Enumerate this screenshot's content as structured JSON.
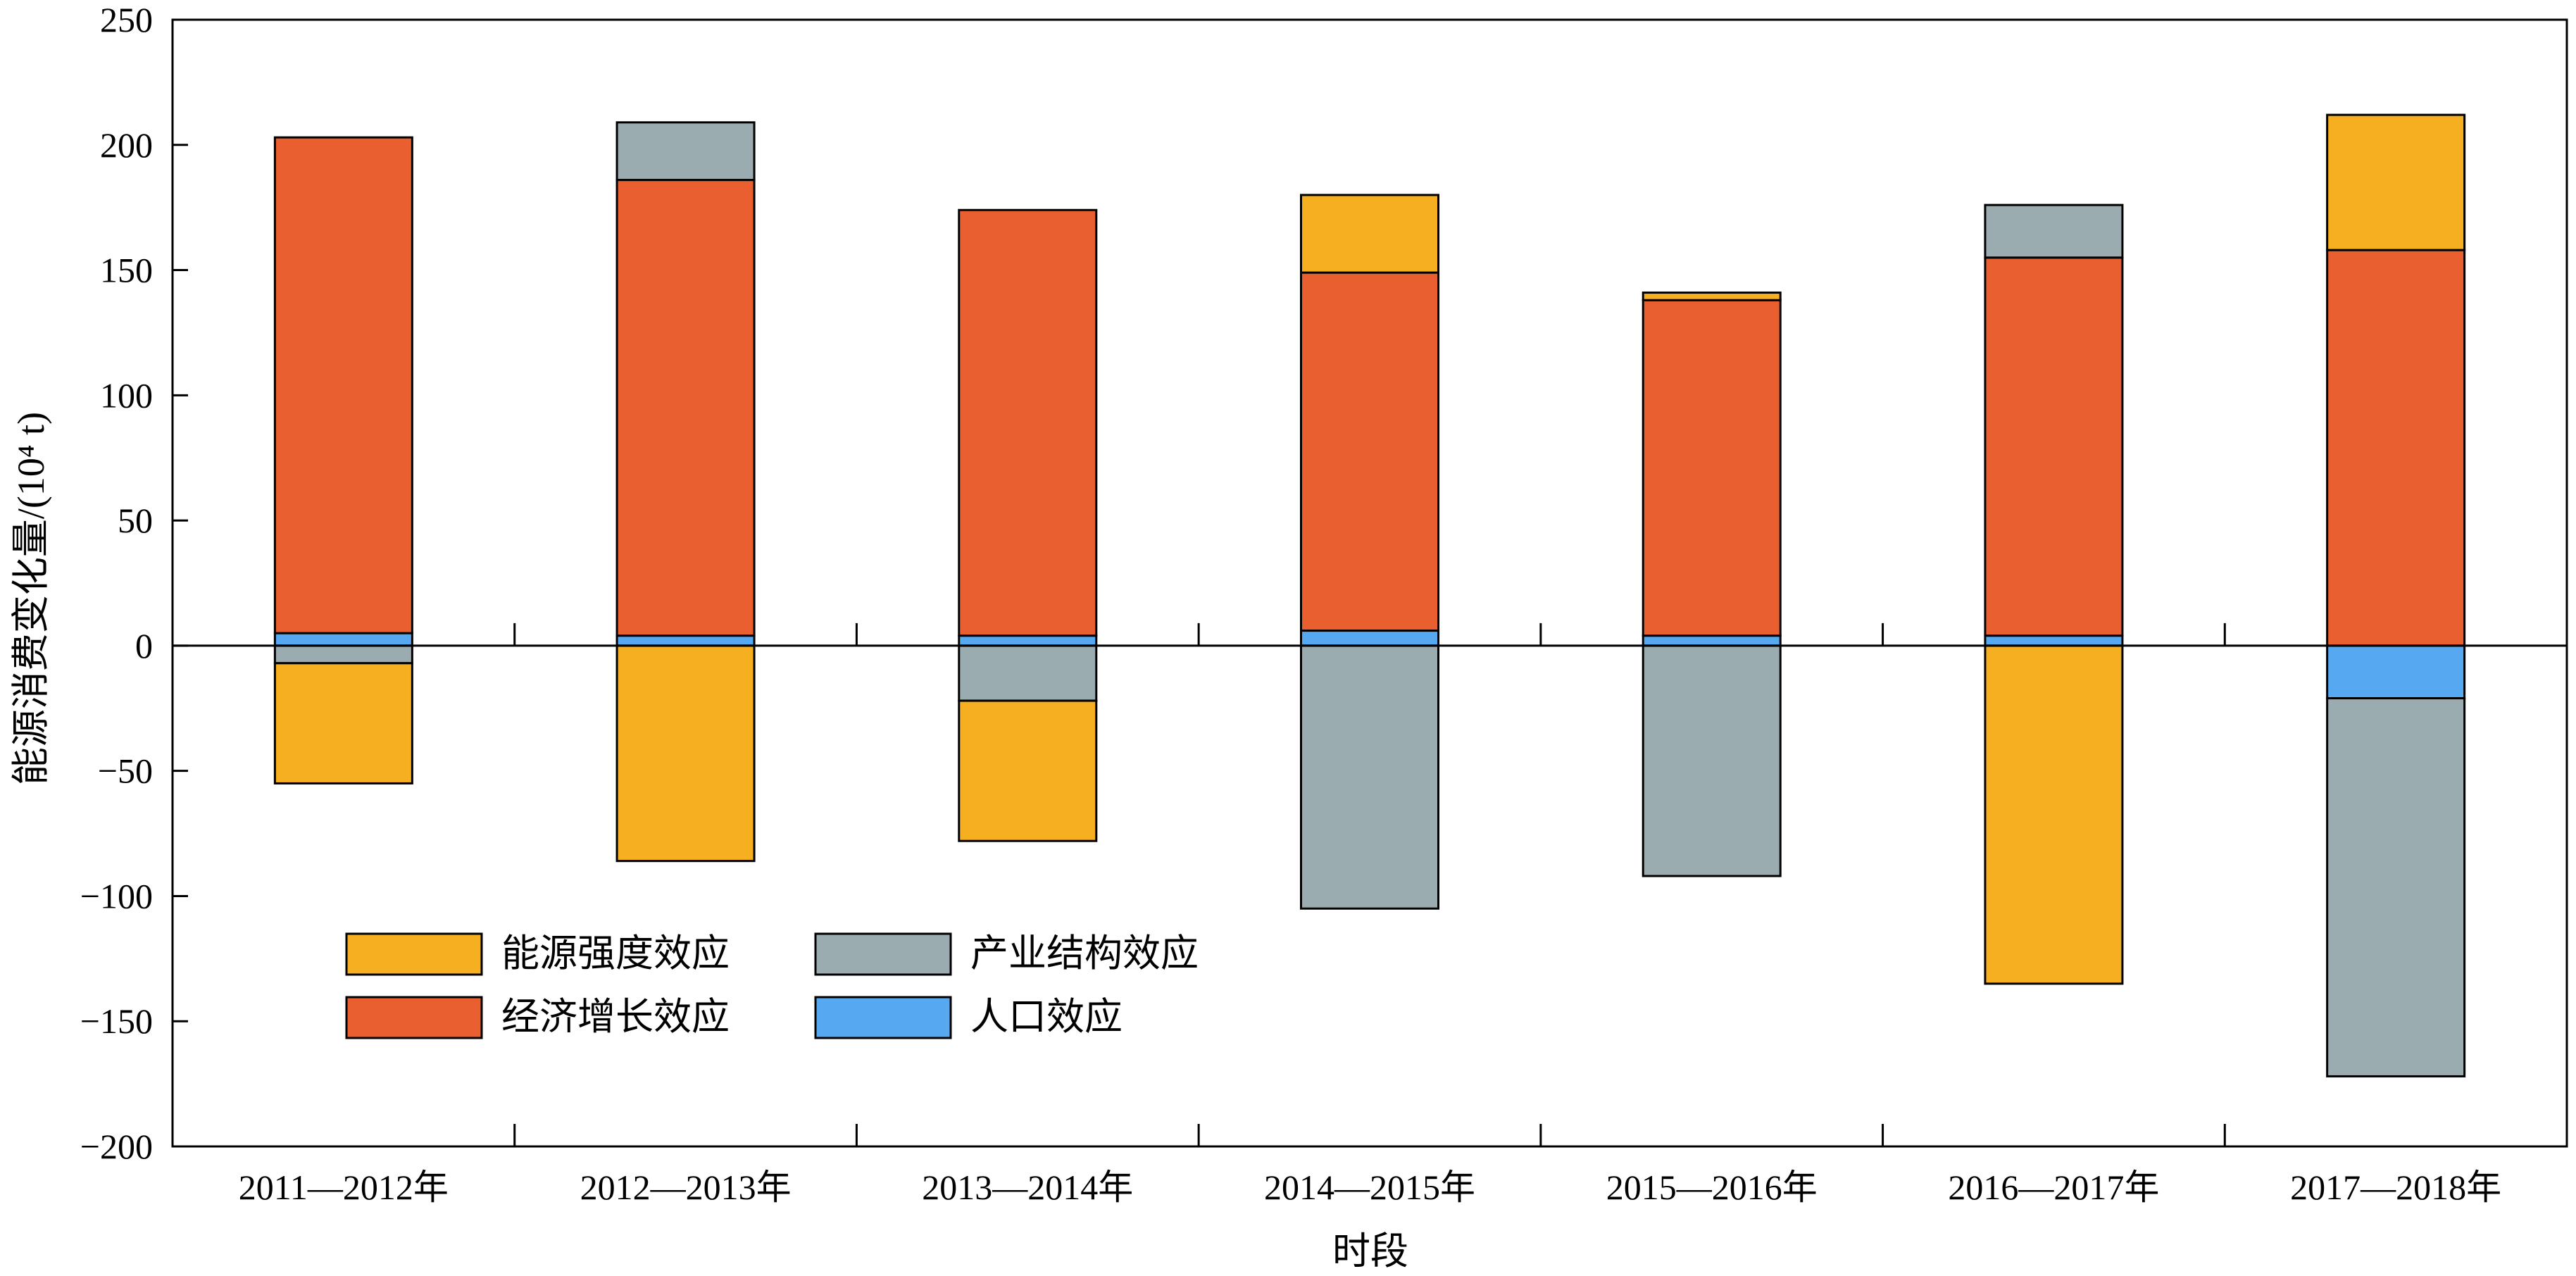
{
  "chart_data": {
    "type": "bar",
    "stacked": true,
    "title": "",
    "xlabel": "时段",
    "ylabel": "能源消费变化量/(10⁴ t)",
    "ylim": [
      -200,
      250
    ],
    "yticks": [
      "250",
      "200",
      "150",
      "100",
      "50",
      "0",
      "−50",
      "−100",
      "−150",
      "−200"
    ],
    "ytick_values": [
      250,
      200,
      150,
      100,
      50,
      0,
      -50,
      -100,
      -150,
      -200
    ],
    "categories": [
      "2011—2012年",
      "2012—2013年",
      "2013—2014年",
      "2014—2015年",
      "2015—2016年",
      "2016—2017年",
      "2017—2018年"
    ],
    "grid": false,
    "legend_position": "bottom-left",
    "series": [
      {
        "name": "能源强度效应",
        "color": "#F5AF21",
        "values": [
          -48,
          -86,
          -56,
          31,
          3,
          -135,
          54
        ]
      },
      {
        "name": "产业结构效应",
        "color": "#9BACB0",
        "values": [
          -7,
          23,
          -22,
          -105,
          -92,
          21,
          -151
        ]
      },
      {
        "name": "经济增长效应",
        "color": "#EA5F2F",
        "values": [
          198,
          182,
          170,
          143,
          134,
          151,
          158
        ]
      },
      {
        "name": "人口效应",
        "color": "#56A9F0",
        "values": [
          5,
          4,
          4,
          6,
          4,
          4,
          -21
        ]
      }
    ],
    "legend_order": [
      "能源强度效应",
      "产业结构效应",
      "经济增长效应",
      "人口效应"
    ]
  }
}
